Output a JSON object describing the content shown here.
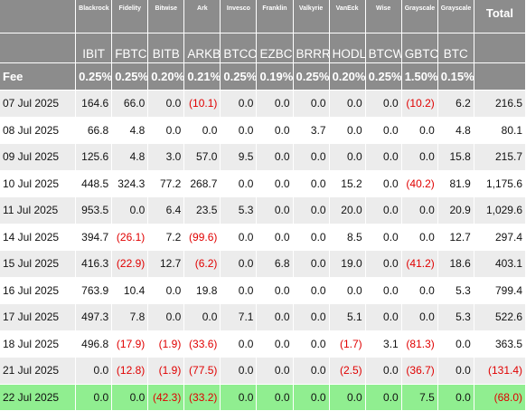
{
  "issuers": [
    "Blackrock",
    "Fidelity",
    "Bitwise",
    "Ark",
    "Invesco",
    "Franklin",
    "Valkyrie",
    "VanEck",
    "Wise",
    "Grayscale",
    "Grayscale"
  ],
  "total_label": "Total",
  "tickers": [
    "IBIT",
    "FBTC",
    "BITB",
    "ARKB",
    "BTCO",
    "EZBC",
    "BRRR",
    "HODL",
    "BTCW",
    "GBTC",
    "BTC"
  ],
  "fee_label": "Fee",
  "fees": [
    "0.25%",
    "0.25%",
    "0.20%",
    "0.21%",
    "0.25%",
    "0.19%",
    "0.25%",
    "0.20%",
    "0.25%",
    "1.50%",
    "0.15%"
  ],
  "colors": {
    "header_bg": "#8c8c8c",
    "stripe_bg": "#ececec",
    "highlight_bg": "#90ee90",
    "negative_text": "#e00000"
  },
  "rows": [
    {
      "date": "07 Jul 2025",
      "values": [
        "164.6",
        "66.0",
        "0.0",
        "(10.1)",
        "0.0",
        "0.0",
        "0.0",
        "0.0",
        "0.0",
        "(10.2)",
        "6.2"
      ],
      "total": "216.5"
    },
    {
      "date": "08 Jul 2025",
      "values": [
        "66.8",
        "4.8",
        "0.0",
        "0.0",
        "0.0",
        "0.0",
        "3.7",
        "0.0",
        "0.0",
        "0.0",
        "4.8"
      ],
      "total": "80.1"
    },
    {
      "date": "09 Jul 2025",
      "values": [
        "125.6",
        "4.8",
        "3.0",
        "57.0",
        "9.5",
        "0.0",
        "0.0",
        "0.0",
        "0.0",
        "0.0",
        "15.8"
      ],
      "total": "215.7"
    },
    {
      "date": "10 Jul 2025",
      "values": [
        "448.5",
        "324.3",
        "77.2",
        "268.7",
        "0.0",
        "0.0",
        "0.0",
        "15.2",
        "0.0",
        "(40.2)",
        "81.9"
      ],
      "total": "1,175.6"
    },
    {
      "date": "11 Jul 2025",
      "values": [
        "953.5",
        "0.0",
        "6.4",
        "23.5",
        "5.3",
        "0.0",
        "0.0",
        "20.0",
        "0.0",
        "0.0",
        "20.9"
      ],
      "total": "1,029.6"
    },
    {
      "date": "14 Jul 2025",
      "values": [
        "394.7",
        "(26.1)",
        "7.2",
        "(99.6)",
        "0.0",
        "0.0",
        "0.0",
        "8.5",
        "0.0",
        "0.0",
        "12.7"
      ],
      "total": "297.4"
    },
    {
      "date": "15 Jul 2025",
      "values": [
        "416.3",
        "(22.9)",
        "12.7",
        "(6.2)",
        "0.0",
        "6.8",
        "0.0",
        "19.0",
        "0.0",
        "(41.2)",
        "18.6"
      ],
      "total": "403.1"
    },
    {
      "date": "16 Jul 2025",
      "values": [
        "763.9",
        "10.4",
        "0.0",
        "19.8",
        "0.0",
        "0.0",
        "0.0",
        "0.0",
        "0.0",
        "0.0",
        "5.3"
      ],
      "total": "799.4"
    },
    {
      "date": "17 Jul 2025",
      "values": [
        "497.3",
        "7.8",
        "0.0",
        "0.0",
        "7.1",
        "0.0",
        "0.0",
        "5.1",
        "0.0",
        "0.0",
        "5.3"
      ],
      "total": "522.6"
    },
    {
      "date": "18 Jul 2025",
      "values": [
        "496.8",
        "(17.9)",
        "(1.9)",
        "(33.6)",
        "0.0",
        "0.0",
        "0.0",
        "(1.7)",
        "3.1",
        "(81.3)",
        "0.0"
      ],
      "total": "363.5"
    },
    {
      "date": "21 Jul 2025",
      "values": [
        "0.0",
        "(12.8)",
        "(1.9)",
        "(77.5)",
        "0.0",
        "0.0",
        "0.0",
        "(2.5)",
        "0.0",
        "(36.7)",
        "0.0"
      ],
      "total": "(131.4)"
    },
    {
      "date": "22 Jul 2025",
      "values": [
        "0.0",
        "0.0",
        "(42.3)",
        "(33.2)",
        "0.0",
        "0.0",
        "0.0",
        "0.0",
        "0.0",
        "7.5",
        "0.0"
      ],
      "total": "(68.0)",
      "highlight": true
    }
  ]
}
